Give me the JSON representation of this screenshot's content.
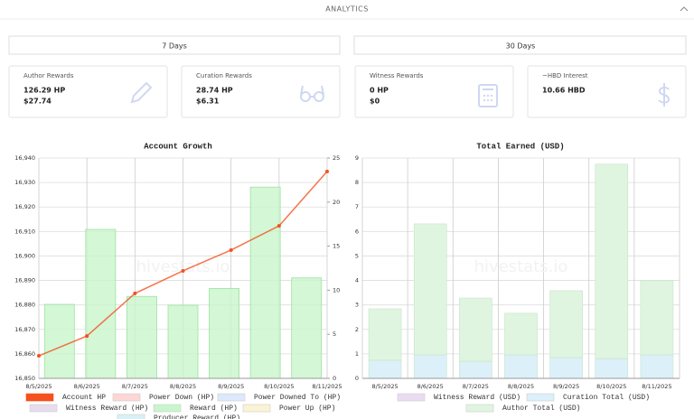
{
  "header": {
    "title": "ANALYTICS"
  },
  "tabs": [
    "7 Days",
    "30 Days"
  ],
  "cards": [
    {
      "label": "Author Rewards",
      "lines": [
        "126.29 HP",
        "$27.74"
      ]
    },
    {
      "label": "Curation Rewards",
      "lines": [
        "28.74 HP",
        "$6.31"
      ]
    },
    {
      "label": "Witness Rewards",
      "lines": [
        "0 HP",
        "$0"
      ]
    },
    {
      "label": "~HBD Interest",
      "lines": [
        "10.66 HBD"
      ]
    }
  ],
  "chart_data": [
    {
      "type": "combo",
      "title": "Account Growth",
      "watermark": "hivestats.io",
      "categories": [
        "8/5/2025",
        "8/6/2025",
        "8/7/2025",
        "8/8/2025",
        "8/9/2025",
        "8/10/2025",
        "8/11/2025"
      ],
      "series": [
        {
          "name": "Account HP",
          "type": "line",
          "color": "#f4511e",
          "values": [
            16859.2,
            16867.3,
            16884.7,
            16893.9,
            16902.4,
            16912.3,
            16934.5
          ]
        },
        {
          "name": "Power Down (HP)",
          "color": "#ffd6d6"
        },
        {
          "name": "Power Downed To (HP)",
          "color": "#dce8fb"
        },
        {
          "name": "Witness Reward (HP)",
          "color": "#e8dcef"
        },
        {
          "name": "Reward (HP)",
          "type": "bar",
          "axis": "y2",
          "color": "#c9f5cc",
          "values": [
            8.4,
            16.9,
            9.3,
            8.3,
            10.2,
            21.7,
            11.4
          ]
        },
        {
          "name": "Power Up (HP)",
          "color": "#fbf3d5"
        },
        {
          "name": "Producer Reward (HP)",
          "color": "#d9f1f6"
        }
      ],
      "ylim": [
        16850,
        16940
      ],
      "yticks": [
        {
          "value": 16850,
          "label": "16,850"
        },
        {
          "value": 16860,
          "label": "16,860"
        },
        {
          "value": 16870,
          "label": "16,870"
        },
        {
          "value": 16880,
          "label": "16,880"
        },
        {
          "value": 16890,
          "label": "16,890"
        },
        {
          "value": 16900,
          "label": "16,900"
        },
        {
          "value": 16910,
          "label": "16,910"
        },
        {
          "value": 16920,
          "label": "16,920"
        },
        {
          "value": 16930,
          "label": "16,930"
        },
        {
          "value": 16940,
          "label": "16,940"
        }
      ],
      "y2lim": [
        0,
        25
      ],
      "y2ticks": [
        0,
        5,
        10,
        15,
        20,
        25
      ],
      "grid": true
    },
    {
      "type": "stacked_bar",
      "title": "Total Earned (USD)",
      "watermark": "hivestats.io",
      "categories": [
        "8/5/2025",
        "8/6/2025",
        "8/7/2025",
        "8/8/2025",
        "8/9/2025",
        "8/10/2025",
        "8/11/2025"
      ],
      "series": [
        {
          "name": "Witness Reward (USD)",
          "color": "#eadcf0"
        },
        {
          "name": "Curation Total (USD)",
          "color": "#dcf0fa",
          "values": [
            0.74,
            0.96,
            0.7,
            0.96,
            0.85,
            0.81,
            0.96
          ]
        },
        {
          "name": "Author Total (USD)",
          "color": "#e0f5e0",
          "values": [
            2.1,
            5.35,
            2.58,
            1.7,
            2.73,
            7.94,
            3.03
          ]
        }
      ],
      "ylim": [
        0,
        9
      ],
      "yticks": [
        0,
        1,
        2,
        3,
        4,
        5,
        6,
        7,
        8,
        9
      ],
      "grid": true
    }
  ]
}
